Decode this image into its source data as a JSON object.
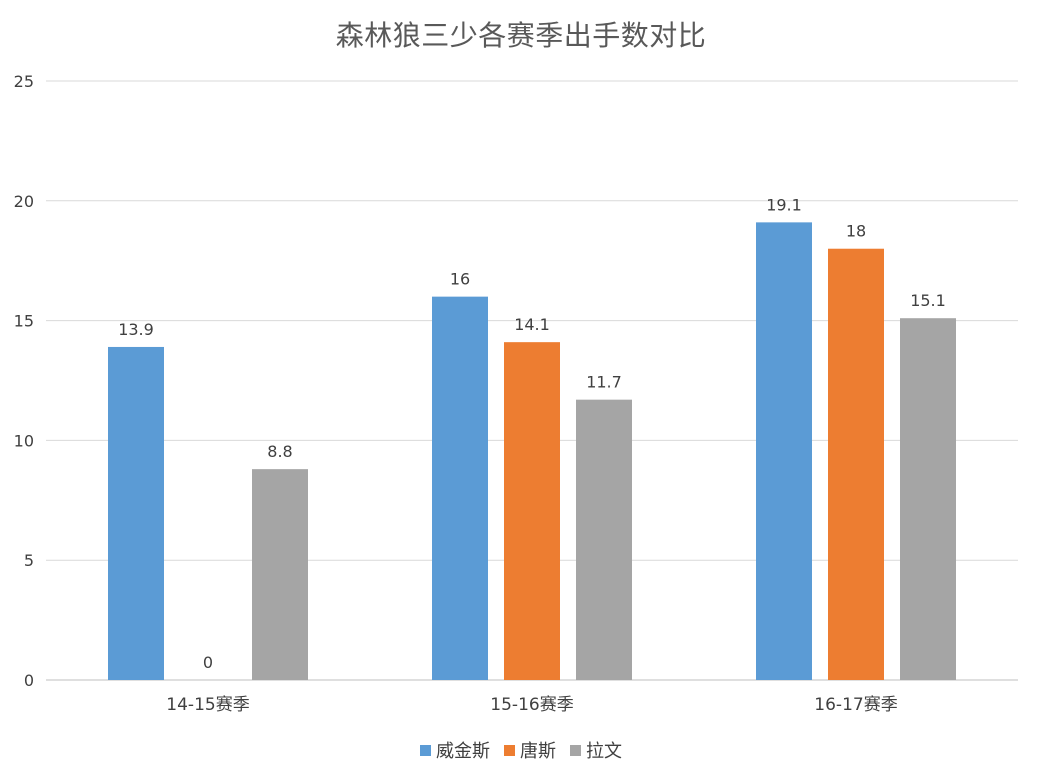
{
  "colors": {
    "series": [
      "#5B9BD5",
      "#ED7D31",
      "#A5A5A5"
    ],
    "grid": "#D9D9D9",
    "axis": "#BFBFBF",
    "tick_text": "#404040",
    "label_text": "#404040",
    "title_text": "#595959"
  },
  "chart_data": {
    "type": "bar",
    "title": "森林狼三少各赛季出手数对比",
    "xlabel": "",
    "ylabel": "",
    "categories": [
      "14-15赛季",
      "15-16赛季",
      "16-17赛季"
    ],
    "series": [
      {
        "name": "威金斯",
        "values": [
          13.9,
          16,
          19.1
        ],
        "labels": [
          "13.9",
          "16",
          "19.1"
        ]
      },
      {
        "name": "唐斯",
        "values": [
          0,
          14.1,
          18
        ],
        "labels": [
          "0",
          "14.1",
          "18"
        ]
      },
      {
        "name": "拉文",
        "values": [
          8.8,
          11.7,
          15.1
        ],
        "labels": [
          "8.8",
          "11.7",
          "15.1"
        ]
      }
    ],
    "ylim": [
      0,
      25
    ],
    "yticks": [
      "0",
      "5",
      "10",
      "15",
      "20",
      "25"
    ],
    "ytick_values": [
      0,
      5,
      10,
      15,
      20,
      25
    ],
    "grid": true,
    "legend_position": "bottom"
  }
}
